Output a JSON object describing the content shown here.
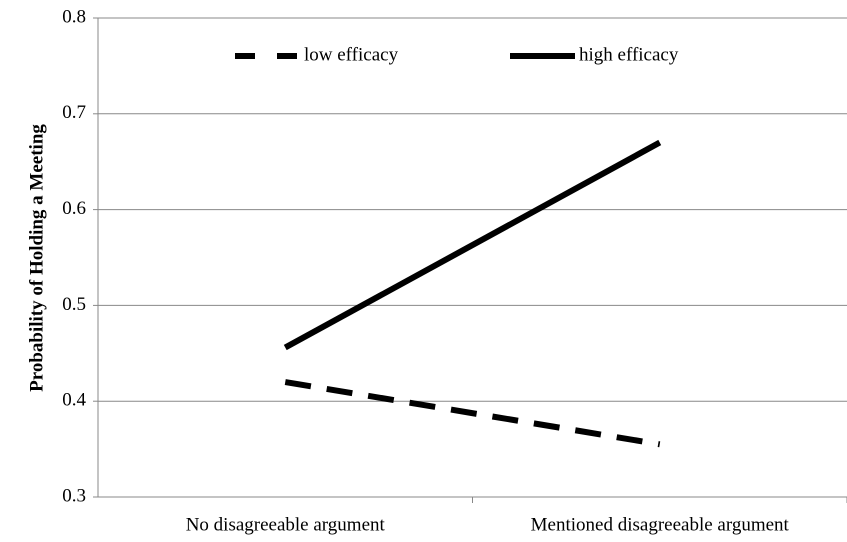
{
  "chart_data": {
    "type": "line",
    "y_label": "Probability of Holding a Meeting",
    "categories": [
      "No disagreeable argument",
      "Mentioned disagreeable argument"
    ],
    "series": [
      {
        "name": "low efficacy",
        "color": "#000000",
        "dash": true,
        "values": [
          0.42,
          0.355
        ]
      },
      {
        "name": "high efficacy",
        "color": "#000000",
        "dash": false,
        "values": [
          0.456,
          0.67
        ]
      }
    ],
    "ylim": [
      0.3,
      0.8
    ],
    "yticks": [
      0.3,
      0.4,
      0.5,
      0.6,
      0.7,
      0.8
    ],
    "grid": true,
    "legend": "top"
  }
}
